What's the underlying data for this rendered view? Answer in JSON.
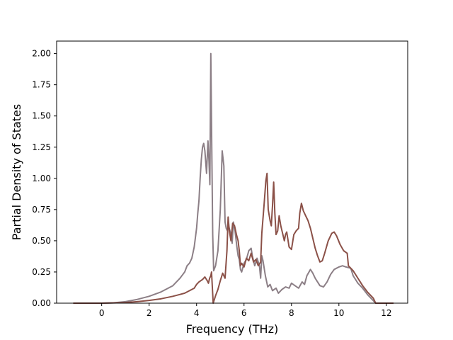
{
  "chart_data": {
    "type": "line",
    "title": "",
    "xlabel": "Frequency (THz)",
    "ylabel": "Partial Density of States",
    "xlim": [
      -1.9,
      12.9
    ],
    "ylim": [
      0.0,
      2.1
    ],
    "xticks": [
      0,
      2,
      4,
      6,
      8,
      10,
      12
    ],
    "xtick_labels": [
      "0",
      "2",
      "4",
      "6",
      "8",
      "10",
      "12"
    ],
    "yticks": [
      0.0,
      0.25,
      0.5,
      0.75,
      1.0,
      1.25,
      1.5,
      1.75,
      2.0
    ],
    "ytick_labels": [
      "0.00",
      "0.25",
      "0.50",
      "0.75",
      "1.00",
      "1.25",
      "1.50",
      "1.75",
      "2.00"
    ],
    "grid": false,
    "legend": "none",
    "series": [
      {
        "color": "#8c7f86",
        "points": [
          [
            -1.2,
            0.0
          ],
          [
            0.0,
            0.0
          ],
          [
            0.5,
            0.003
          ],
          [
            1.0,
            0.012
          ],
          [
            1.5,
            0.03
          ],
          [
            2.0,
            0.055
          ],
          [
            2.5,
            0.09
          ],
          [
            3.0,
            0.14
          ],
          [
            3.3,
            0.2
          ],
          [
            3.5,
            0.25
          ],
          [
            3.6,
            0.3
          ],
          [
            3.7,
            0.32
          ],
          [
            3.8,
            0.36
          ],
          [
            3.9,
            0.45
          ],
          [
            4.0,
            0.6
          ],
          [
            4.05,
            0.72
          ],
          [
            4.1,
            0.82
          ],
          [
            4.15,
            1.0
          ],
          [
            4.2,
            1.15
          ],
          [
            4.25,
            1.25
          ],
          [
            4.3,
            1.28
          ],
          [
            4.35,
            1.22
          ],
          [
            4.42,
            1.04
          ],
          [
            4.48,
            1.3
          ],
          [
            4.52,
            1.15
          ],
          [
            4.56,
            0.95
          ],
          [
            4.6,
            2.0
          ],
          [
            4.64,
            1.25
          ],
          [
            4.68,
            0.55
          ],
          [
            4.72,
            0.26
          ],
          [
            4.8,
            0.3
          ],
          [
            4.9,
            0.42
          ],
          [
            5.0,
            0.75
          ],
          [
            5.08,
            1.22
          ],
          [
            5.15,
            1.1
          ],
          [
            5.2,
            0.65
          ],
          [
            5.25,
            0.6
          ],
          [
            5.3,
            0.58
          ],
          [
            5.35,
            0.62
          ],
          [
            5.45,
            0.55
          ],
          [
            5.5,
            0.48
          ],
          [
            5.55,
            0.65
          ],
          [
            5.62,
            0.58
          ],
          [
            5.7,
            0.45
          ],
          [
            5.75,
            0.38
          ],
          [
            5.8,
            0.35
          ],
          [
            5.85,
            0.27
          ],
          [
            5.9,
            0.25
          ],
          [
            6.0,
            0.32
          ],
          [
            6.1,
            0.35
          ],
          [
            6.2,
            0.42
          ],
          [
            6.3,
            0.44
          ],
          [
            6.35,
            0.38
          ],
          [
            6.45,
            0.3
          ],
          [
            6.55,
            0.36
          ],
          [
            6.65,
            0.3
          ],
          [
            6.7,
            0.2
          ],
          [
            6.75,
            0.38
          ],
          [
            6.8,
            0.34
          ],
          [
            6.9,
            0.22
          ],
          [
            7.0,
            0.13
          ],
          [
            7.1,
            0.15
          ],
          [
            7.2,
            0.1
          ],
          [
            7.35,
            0.12
          ],
          [
            7.45,
            0.08
          ],
          [
            7.6,
            0.11
          ],
          [
            7.75,
            0.13
          ],
          [
            7.9,
            0.12
          ],
          [
            8.0,
            0.16
          ],
          [
            8.15,
            0.14
          ],
          [
            8.3,
            0.12
          ],
          [
            8.45,
            0.17
          ],
          [
            8.55,
            0.15
          ],
          [
            8.65,
            0.22
          ],
          [
            8.8,
            0.27
          ],
          [
            8.9,
            0.24
          ],
          [
            9.0,
            0.2
          ],
          [
            9.1,
            0.17
          ],
          [
            9.2,
            0.14
          ],
          [
            9.35,
            0.13
          ],
          [
            9.5,
            0.17
          ],
          [
            9.65,
            0.23
          ],
          [
            9.8,
            0.27
          ],
          [
            10.0,
            0.29
          ],
          [
            10.15,
            0.3
          ],
          [
            10.3,
            0.29
          ],
          [
            10.5,
            0.28
          ],
          [
            10.6,
            0.22
          ],
          [
            10.8,
            0.16
          ],
          [
            11.0,
            0.12
          ],
          [
            11.2,
            0.07
          ],
          [
            11.35,
            0.04
          ],
          [
            11.45,
            0.02
          ],
          [
            11.55,
            0.0
          ],
          [
            12.3,
            0.0
          ]
        ]
      },
      {
        "color": "#8b5148",
        "points": [
          [
            -1.2,
            0.0
          ],
          [
            0.0,
            0.0
          ],
          [
            0.5,
            0.002
          ],
          [
            1.0,
            0.005
          ],
          [
            1.5,
            0.012
          ],
          [
            2.0,
            0.022
          ],
          [
            2.5,
            0.035
          ],
          [
            3.0,
            0.055
          ],
          [
            3.5,
            0.08
          ],
          [
            3.7,
            0.1
          ],
          [
            3.9,
            0.12
          ],
          [
            4.0,
            0.15
          ],
          [
            4.1,
            0.17
          ],
          [
            4.25,
            0.19
          ],
          [
            4.35,
            0.21
          ],
          [
            4.45,
            0.18
          ],
          [
            4.5,
            0.16
          ],
          [
            4.55,
            0.2
          ],
          [
            4.6,
            0.22
          ],
          [
            4.63,
            0.25
          ],
          [
            4.65,
            0.18
          ],
          [
            4.7,
            0.0
          ],
          [
            4.8,
            0.06
          ],
          [
            4.9,
            0.11
          ],
          [
            5.0,
            0.18
          ],
          [
            5.1,
            0.24
          ],
          [
            5.2,
            0.2
          ],
          [
            5.28,
            0.42
          ],
          [
            5.33,
            0.69
          ],
          [
            5.38,
            0.58
          ],
          [
            5.45,
            0.5
          ],
          [
            5.52,
            0.64
          ],
          [
            5.6,
            0.62
          ],
          [
            5.68,
            0.55
          ],
          [
            5.75,
            0.5
          ],
          [
            5.8,
            0.42
          ],
          [
            5.85,
            0.3
          ],
          [
            5.9,
            0.32
          ],
          [
            6.0,
            0.29
          ],
          [
            6.1,
            0.36
          ],
          [
            6.2,
            0.34
          ],
          [
            6.3,
            0.4
          ],
          [
            6.4,
            0.33
          ],
          [
            6.5,
            0.35
          ],
          [
            6.6,
            0.3
          ],
          [
            6.7,
            0.33
          ],
          [
            6.75,
            0.56
          ],
          [
            6.85,
            0.8
          ],
          [
            6.92,
            0.98
          ],
          [
            6.97,
            1.04
          ],
          [
            7.02,
            0.75
          ],
          [
            7.1,
            0.66
          ],
          [
            7.15,
            0.62
          ],
          [
            7.2,
            0.78
          ],
          [
            7.25,
            0.97
          ],
          [
            7.3,
            0.72
          ],
          [
            7.35,
            0.55
          ],
          [
            7.42,
            0.58
          ],
          [
            7.48,
            0.7
          ],
          [
            7.55,
            0.62
          ],
          [
            7.6,
            0.58
          ],
          [
            7.7,
            0.5
          ],
          [
            7.75,
            0.55
          ],
          [
            7.8,
            0.57
          ],
          [
            7.9,
            0.45
          ],
          [
            8.0,
            0.43
          ],
          [
            8.1,
            0.55
          ],
          [
            8.2,
            0.58
          ],
          [
            8.3,
            0.6
          ],
          [
            8.35,
            0.72
          ],
          [
            8.42,
            0.8
          ],
          [
            8.5,
            0.74
          ],
          [
            8.6,
            0.7
          ],
          [
            8.7,
            0.66
          ],
          [
            8.8,
            0.6
          ],
          [
            8.9,
            0.52
          ],
          [
            9.0,
            0.44
          ],
          [
            9.1,
            0.38
          ],
          [
            9.2,
            0.33
          ],
          [
            9.3,
            0.34
          ],
          [
            9.4,
            0.4
          ],
          [
            9.55,
            0.5
          ],
          [
            9.7,
            0.56
          ],
          [
            9.8,
            0.57
          ],
          [
            9.9,
            0.54
          ],
          [
            10.05,
            0.47
          ],
          [
            10.2,
            0.42
          ],
          [
            10.35,
            0.4
          ],
          [
            10.4,
            0.3
          ],
          [
            10.6,
            0.26
          ],
          [
            10.8,
            0.2
          ],
          [
            11.0,
            0.14
          ],
          [
            11.2,
            0.09
          ],
          [
            11.35,
            0.06
          ],
          [
            11.45,
            0.04
          ],
          [
            11.55,
            0.0
          ],
          [
            12.3,
            0.0
          ]
        ]
      }
    ]
  }
}
